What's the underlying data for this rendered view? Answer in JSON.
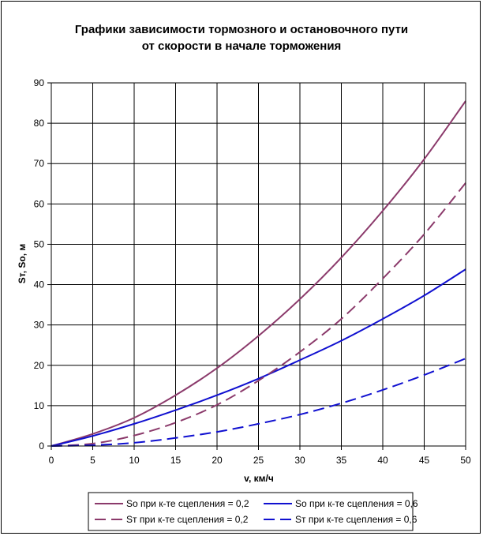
{
  "chart_data": {
    "type": "line",
    "title": "Графики зависимости тормозного и остановочного пути",
    "subtitle": "от скорости в начале торможения",
    "xlabel": "v, км/ч",
    "ylabel": "Sт, So, м",
    "xlim": [
      0,
      50
    ],
    "ylim": [
      0,
      90
    ],
    "x_ticks": [
      "0",
      "5",
      "10",
      "15",
      "20",
      "25",
      "30",
      "35",
      "40",
      "45",
      "50"
    ],
    "y_ticks": [
      "0",
      "10",
      "20",
      "30",
      "40",
      "50",
      "60",
      "70",
      "80",
      "90"
    ],
    "grid": true,
    "legend_position": "bottom",
    "x": [
      0,
      5,
      10,
      15,
      20,
      25,
      30,
      35,
      40,
      45,
      50
    ],
    "series": [
      {
        "name": "So при к-те сцепления = 0,2",
        "color": "#8B3A6B",
        "dash": "solid",
        "values": [
          0,
          3.0,
          7.0,
          12.6,
          19.3,
          27.3,
          36.4,
          46.7,
          58.3,
          71.1,
          85.5
        ]
      },
      {
        "name": "So при к-те сцепления = 0,6",
        "color": "#1010D0",
        "dash": "solid",
        "values": [
          0,
          2.5,
          5.5,
          8.9,
          12.6,
          16.7,
          21.3,
          26.1,
          31.5,
          37.3,
          43.8
        ]
      },
      {
        "name": "Sт при к-те сцепления = 0,2",
        "color": "#8B3A6B",
        "dash": "dashed",
        "values": [
          0,
          0.6,
          2.6,
          5.8,
          10.2,
          16.2,
          23.3,
          31.5,
          41.5,
          52.5,
          65.2
        ]
      },
      {
        "name": "Sт при к-те сцепления = 0,6",
        "color": "#1010D0",
        "dash": "dashed",
        "values": [
          0,
          0.2,
          0.8,
          2.0,
          3.5,
          5.5,
          7.8,
          10.6,
          13.9,
          17.6,
          21.7
        ]
      }
    ]
  }
}
